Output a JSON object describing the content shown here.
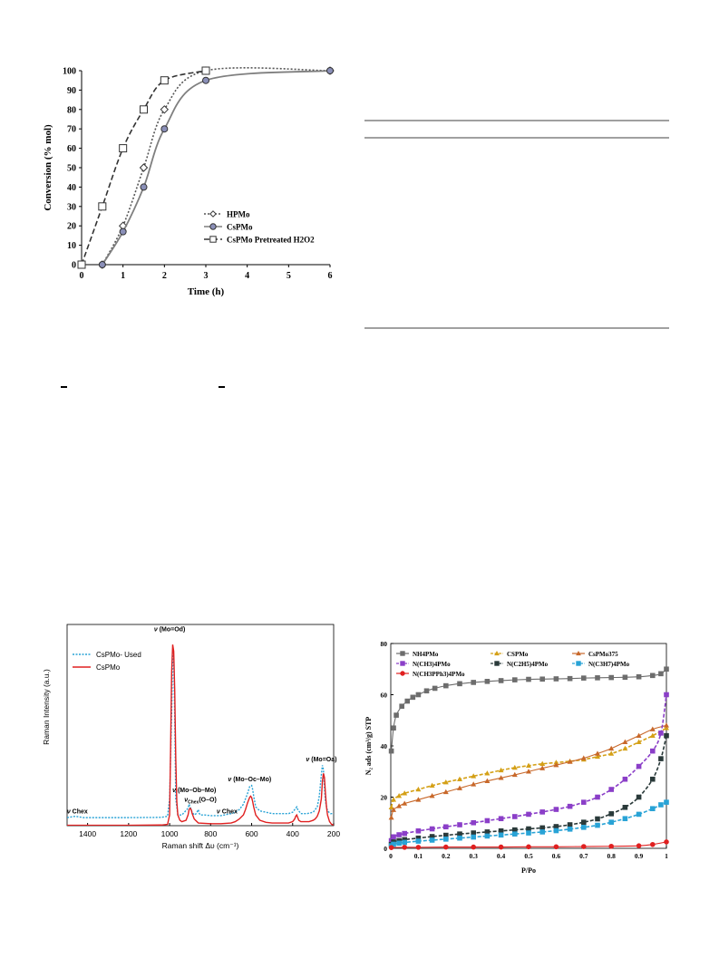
{
  "chart_data": [
    {
      "type": "line",
      "xlabel": "Time (h)",
      "ylabel": "Conversion  (% mol)",
      "xlim": [
        0,
        6
      ],
      "ylim": [
        0,
        100
      ],
      "x_ticks": [
        "0",
        "1",
        "2",
        "3",
        "4",
        "5",
        "6"
      ],
      "y_ticks": [
        "0",
        "10",
        "20",
        "30",
        "40",
        "50",
        "60",
        "70",
        "80",
        "90",
        "100"
      ],
      "legend_position": "bottom-right",
      "grid": false,
      "series": [
        {
          "name": "HPMo",
          "marker": "diamond",
          "line": "dotted",
          "color": "#555555",
          "x": [
            0.5,
            1,
            1.5,
            2,
            3,
            6
          ],
          "y": [
            0,
            20,
            50,
            80,
            100,
            100
          ]
        },
        {
          "name": "CsPMo",
          "marker": "circle",
          "line": "solid",
          "color": "#7f7f7f",
          "x": [
            0.5,
            1,
            1.5,
            2,
            3,
            6
          ],
          "y": [
            0,
            17,
            40,
            70,
            95,
            100
          ]
        },
        {
          "name": "CsPMo Pretreated H2O2",
          "marker": "square",
          "line": "dashed",
          "color": "#333333",
          "x": [
            0,
            0.5,
            1,
            1.5,
            2,
            3
          ],
          "y": [
            0,
            30,
            60,
            80,
            95,
            100
          ]
        }
      ]
    },
    {
      "type": "line",
      "xlabel": "Raman  shift  Δυ (cm⁻¹)",
      "ylabel": "Raman Intensity  (a.u.)",
      "xlim": [
        1500,
        200
      ],
      "x_ticks": [
        "1400",
        "1200",
        "1000",
        "800",
        "600",
        "400",
        "200"
      ],
      "legend_position": "top-left",
      "series": [
        {
          "name": "CsPMo- Used",
          "color": "#29a3d6",
          "line": "dotted",
          "x": [
            1500,
            1460,
            1420,
            1200,
            1040,
            1010,
            1000,
            990,
            985,
            980,
            975,
            970,
            960,
            940,
            910,
            905,
            900,
            890,
            880,
            870,
            860,
            855,
            850,
            830,
            800,
            750,
            700,
            680,
            660,
            640,
            620,
            610,
            600,
            595,
            590,
            580,
            560,
            530,
            500,
            470,
            450,
            420,
            400,
            385,
            380,
            375,
            360,
            330,
            300,
            280,
            270,
            260,
            255,
            250,
            245,
            240,
            230,
            215,
            200
          ],
          "y": [
            6,
            7,
            6,
            6,
            6.2,
            7,
            20,
            85,
            130,
            125,
            80,
            20,
            8,
            8,
            13,
            16,
            14,
            10,
            8,
            9,
            12,
            9,
            8,
            8,
            7.5,
            7.5,
            9,
            10,
            12,
            16,
            24,
            29,
            30,
            27,
            22,
            14,
            11,
            10,
            9,
            9,
            9,
            9,
            10,
            13,
            14,
            12,
            9,
            9,
            10,
            14,
            22,
            38,
            45,
            42,
            28,
            18,
            11,
            9,
            9
          ]
        },
        {
          "name": "CsPMo",
          "color": "#e02020",
          "line": "solid",
          "x": [
            1500,
            1400,
            1200,
            1040,
            1010,
            1000,
            995,
            990,
            985,
            980,
            975,
            970,
            965,
            960,
            950,
            940,
            920,
            910,
            905,
            900,
            895,
            890,
            880,
            860,
            800,
            750,
            700,
            680,
            660,
            640,
            630,
            620,
            610,
            605,
            600,
            595,
            590,
            580,
            560,
            530,
            500,
            480,
            460,
            440,
            420,
            400,
            390,
            385,
            380,
            375,
            370,
            360,
            340,
            320,
            300,
            290,
            280,
            270,
            260,
            255,
            250,
            245,
            240,
            235,
            230,
            220,
            210,
            200
          ],
          "y": [
            0.3,
            0.3,
            0.3,
            0.5,
            1,
            8,
            60,
            115,
            135,
            130,
            100,
            50,
            18,
            8,
            4,
            3,
            4,
            8,
            12,
            13,
            12,
            9,
            5,
            2,
            1.5,
            1.5,
            2,
            3,
            5,
            8,
            12,
            17,
            21,
            22,
            21,
            18,
            14,
            8,
            4,
            2.5,
            2,
            2,
            2,
            2,
            2,
            3,
            5,
            7,
            8,
            6,
            4,
            3,
            3,
            3,
            4,
            5,
            7,
            11,
            20,
            33,
            39,
            36,
            24,
            14,
            8,
            3,
            1,
            0.5
          ]
        }
      ],
      "annotations": [
        {
          "text": "ν",
          "sub": "",
          "rest": " (Mo=Od)",
          "x": 1000,
          "y": 145
        },
        {
          "text": "ν",
          "sub": "",
          "rest": " (Mo=Oa)",
          "x": 260,
          "y": 48
        },
        {
          "text": "ν",
          "sub": "",
          "rest": " (Mo–Ob–Mo)",
          "x": 880,
          "y": 25
        },
        {
          "text": "ν",
          "sub": "",
          "rest": " (Mo–Oc–Mo)",
          "x": 610,
          "y": 33
        },
        {
          "text": "ν",
          "sub": "Chex",
          "rest": "(O–O)",
          "x": 850,
          "y": 18
        },
        {
          "text": "ν",
          "sub": "",
          "rest": " Chex",
          "x": 1450,
          "y": 9
        },
        {
          "text": "ν",
          "sub": "",
          "rest": " Chex",
          "x": 720,
          "y": 9
        }
      ]
    },
    {
      "type": "line",
      "xlabel": "P/Po",
      "ylabel": "N₂ ads (cm³/g) STP",
      "xlim": [
        0,
        1
      ],
      "ylim": [
        0,
        80
      ],
      "x_ticks": [
        "0",
        "0.1",
        "0.2",
        "0.3",
        "0.4",
        "0.5",
        "0.6",
        "0.7",
        "0.8",
        "0.9",
        "1"
      ],
      "y_ticks": [
        "0",
        "20",
        "40",
        "60",
        "80"
      ],
      "legend_position": "top",
      "series": [
        {
          "name": "NH4PMo",
          "color": "#6d6d6d",
          "marker": "square",
          "x": [
            0.002,
            0.01,
            0.02,
            0.04,
            0.06,
            0.08,
            0.1,
            0.13,
            0.16,
            0.2,
            0.25,
            0.3,
            0.35,
            0.4,
            0.45,
            0.5,
            0.55,
            0.6,
            0.65,
            0.7,
            0.75,
            0.8,
            0.85,
            0.9,
            0.95,
            0.98,
            1.0
          ],
          "y": [
            38,
            47,
            52,
            55.5,
            57.5,
            59,
            60,
            61.5,
            62.5,
            63.5,
            64.3,
            64.8,
            65.2,
            65.5,
            65.8,
            66,
            66.1,
            66.2,
            66.3,
            66.5,
            66.6,
            66.7,
            66.8,
            67,
            67.5,
            68.2,
            70
          ]
        },
        {
          "name": "CSPMo",
          "color": "#d4a017",
          "marker": "triangle",
          "dashed": true,
          "x": [
            0.002,
            0.01,
            0.03,
            0.05,
            0.1,
            0.15,
            0.2,
            0.25,
            0.3,
            0.35,
            0.4,
            0.45,
            0.5,
            0.55,
            0.6,
            0.65,
            0.7,
            0.75,
            0.8,
            0.85,
            0.9,
            0.95,
            1.0
          ],
          "y": [
            16,
            19,
            20.5,
            21.5,
            23,
            24.5,
            25.8,
            27,
            28.2,
            29.3,
            30.5,
            31.5,
            32.3,
            33,
            33.5,
            34,
            34.7,
            35.8,
            37,
            39,
            41.5,
            44,
            47
          ]
        },
        {
          "name": "CsPMo375",
          "color": "#c8682a",
          "marker": "triangle",
          "x": [
            0.002,
            0.01,
            0.03,
            0.05,
            0.1,
            0.15,
            0.2,
            0.25,
            0.3,
            0.35,
            0.4,
            0.45,
            0.5,
            0.55,
            0.6,
            0.65,
            0.7,
            0.75,
            0.8,
            0.85,
            0.9,
            0.95,
            1.0
          ],
          "y": [
            12,
            15,
            16.5,
            17.5,
            19,
            20.5,
            22,
            23.5,
            25,
            26.3,
            27.5,
            28.7,
            30,
            31.3,
            32.5,
            33.8,
            35.2,
            37,
            39,
            41.5,
            44,
            46.5,
            48
          ]
        },
        {
          "name": "N(CH3)4PMo",
          "color": "#8b3fc8",
          "marker": "square",
          "dashed": true,
          "x": [
            0.002,
            0.01,
            0.03,
            0.05,
            0.1,
            0.15,
            0.2,
            0.25,
            0.3,
            0.35,
            0.4,
            0.45,
            0.5,
            0.55,
            0.6,
            0.65,
            0.7,
            0.75,
            0.8,
            0.85,
            0.9,
            0.95,
            0.98,
            1.0
          ],
          "y": [
            3,
            4.5,
            5.3,
            5.8,
            6.8,
            7.6,
            8.4,
            9.2,
            10,
            10.8,
            11.6,
            12.4,
            13.3,
            14.2,
            15.2,
            16.4,
            18,
            20,
            23,
            27,
            32,
            38,
            45,
            60
          ]
        },
        {
          "name": "N(C2H5)4PMo",
          "color": "#2a3a3a",
          "marker": "square",
          "dashed": true,
          "x": [
            0.002,
            0.01,
            0.03,
            0.05,
            0.1,
            0.15,
            0.2,
            0.25,
            0.3,
            0.35,
            0.4,
            0.45,
            0.5,
            0.55,
            0.6,
            0.65,
            0.7,
            0.75,
            0.8,
            0.85,
            0.9,
            0.95,
            0.98,
            1.0
          ],
          "y": [
            1.5,
            2.5,
            3,
            3.4,
            4,
            4.6,
            5.1,
            5.6,
            6,
            6.4,
            6.8,
            7.2,
            7.6,
            8,
            8.5,
            9.2,
            10.2,
            11.5,
            13.5,
            16,
            20,
            27,
            35,
            44
          ]
        },
        {
          "name": "N(C3H7)4PMo",
          "color": "#29a3d6",
          "marker": "square",
          "dashed": true,
          "x": [
            0.002,
            0.01,
            0.03,
            0.05,
            0.1,
            0.15,
            0.2,
            0.25,
            0.3,
            0.35,
            0.4,
            0.45,
            0.5,
            0.55,
            0.6,
            0.65,
            0.7,
            0.75,
            0.8,
            0.85,
            0.9,
            0.95,
            0.98,
            1.0
          ],
          "y": [
            1,
            1.6,
            2,
            2.3,
            2.8,
            3.2,
            3.6,
            4,
            4.4,
            4.8,
            5.2,
            5.6,
            6,
            6.4,
            6.9,
            7.5,
            8.2,
            9,
            10.2,
            11.6,
            13.3,
            15.5,
            17,
            18
          ]
        },
        {
          "name": "N(CH3PPh3)4PMo",
          "color": "#e02020",
          "marker": "circle",
          "x": [
            0.002,
            0.05,
            0.1,
            0.2,
            0.3,
            0.4,
            0.5,
            0.6,
            0.7,
            0.8,
            0.9,
            0.95,
            1.0
          ],
          "y": [
            0.3,
            0.4,
            0.4,
            0.5,
            0.5,
            0.5,
            0.6,
            0.6,
            0.7,
            0.8,
            1,
            1.5,
            2.5
          ]
        }
      ]
    }
  ]
}
